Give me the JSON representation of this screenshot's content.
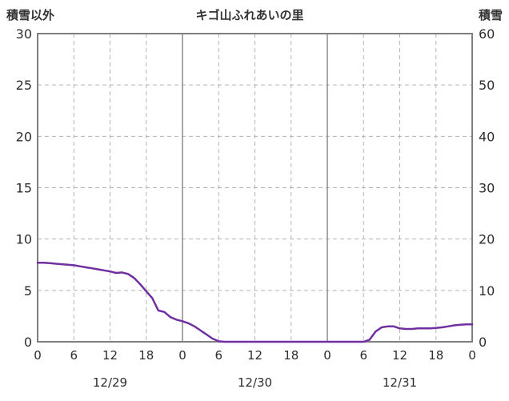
{
  "header": {
    "left_label": "積雪以外",
    "title": "キゴ山ふれあいの里",
    "right_label": "積雪"
  },
  "colors": {
    "line": "#7030A0",
    "border": "#7f7f7f",
    "grid_dashed": "#b3b3b3",
    "grid_day_solid": "#8c8c8c",
    "text": "#2e2e2e",
    "background": "#ffffff"
  },
  "chart_data": {
    "type": "line",
    "title": "キゴ山ふれあいの里",
    "left_axis": {
      "label": "積雪以外",
      "min": 0,
      "max": 30,
      "ticks": [
        0,
        5,
        10,
        15,
        20,
        25,
        30
      ]
    },
    "right_axis": {
      "label": "積雪",
      "min": 0,
      "max": 60,
      "ticks": [
        0,
        10,
        20,
        30,
        40,
        50,
        60
      ]
    },
    "x_axis": {
      "min": 0,
      "max": 72,
      "hour_ticks": [
        0,
        6,
        12,
        18,
        24,
        30,
        36,
        42,
        48,
        54,
        60,
        66,
        72
      ],
      "hour_tick_labels": [
        "0",
        "6",
        "12",
        "18",
        "0",
        "6",
        "12",
        "18",
        "0",
        "6",
        "12",
        "18",
        "0"
      ],
      "day_boundaries": [
        24,
        48
      ],
      "day_labels": [
        {
          "label": "12/29",
          "center_hour": 12
        },
        {
          "label": "12/30",
          "center_hour": 36
        },
        {
          "label": "12/31",
          "center_hour": 60
        }
      ]
    },
    "series": [
      {
        "name": "積雪",
        "axis": "right",
        "color": "#7030A0",
        "x": [
          0,
          1,
          2,
          3,
          4,
          5,
          6,
          7,
          8,
          9,
          10,
          11,
          12,
          13,
          14,
          15,
          16,
          17,
          18,
          19,
          20,
          21,
          22,
          23,
          24,
          25,
          26,
          27,
          28,
          29,
          30,
          31,
          32,
          33,
          34,
          35,
          36,
          37,
          38,
          39,
          40,
          41,
          42,
          43,
          44,
          45,
          46,
          47,
          48,
          49,
          50,
          51,
          52,
          53,
          54,
          55,
          56,
          57,
          58,
          59,
          60,
          61,
          62,
          63,
          64,
          65,
          66,
          67,
          68,
          69,
          70,
          71,
          72
        ],
        "values": [
          15.4,
          15.4,
          15.3,
          15.2,
          15.1,
          15.0,
          14.9,
          14.7,
          14.5,
          14.3,
          14.1,
          13.9,
          13.7,
          13.4,
          13.5,
          13.2,
          12.4,
          11.2,
          9.8,
          8.5,
          6.1,
          5.8,
          4.8,
          4.3,
          4.0,
          3.6,
          3.0,
          2.2,
          1.4,
          0.6,
          0.1,
          0,
          0,
          0,
          0,
          0,
          0,
          0,
          0,
          0,
          0,
          0,
          0,
          0,
          0,
          0,
          0,
          0,
          0,
          0,
          0,
          0,
          0,
          0,
          0,
          0.4,
          2.0,
          2.8,
          3.0,
          3.0,
          2.6,
          2.5,
          2.5,
          2.6,
          2.6,
          2.6,
          2.7,
          2.8,
          3.0,
          3.2,
          3.3,
          3.4,
          3.4
        ]
      }
    ],
    "grid": {
      "horizontal_dashed": true,
      "vertical_minor_dashed": true,
      "vertical_day_solid": true,
      "legend": "none"
    }
  }
}
